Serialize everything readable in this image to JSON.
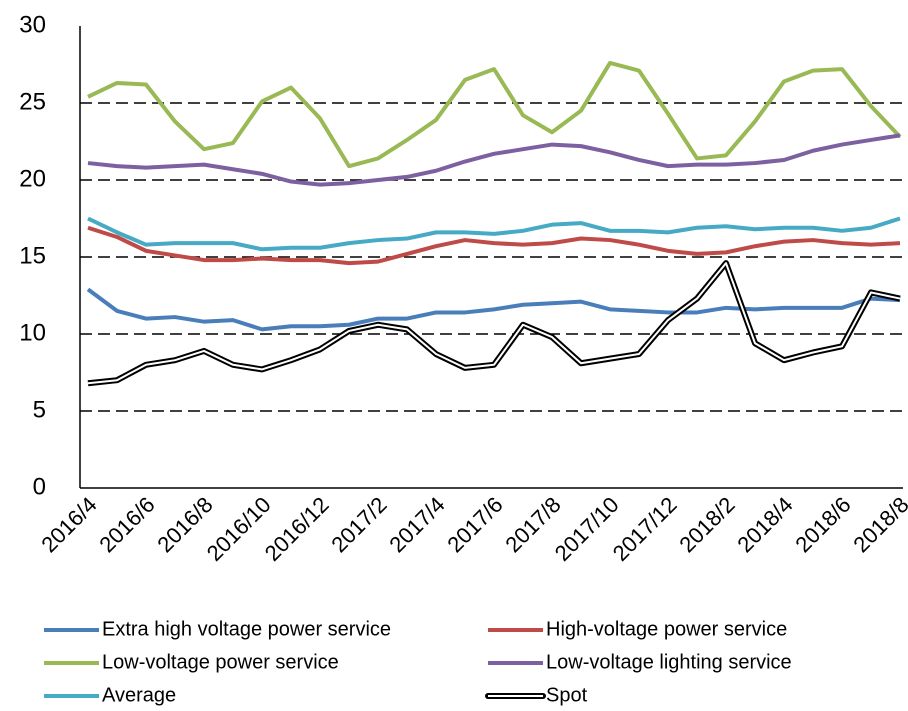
{
  "chart_data": {
    "type": "line",
    "categories": [
      "2016/4",
      null,
      "2016/6",
      null,
      "2016/8",
      null,
      "2016/10",
      null,
      "2016/12",
      null,
      "2017/2",
      null,
      "2017/4",
      null,
      "2017/6",
      null,
      "2017/8",
      null,
      "2017/10",
      null,
      "2017/12",
      null,
      "2018/2",
      null,
      "2018/4",
      null,
      "2018/6",
      null,
      "2018/8"
    ],
    "ylim": [
      0,
      30
    ],
    "yticks": [
      0,
      5,
      10,
      15,
      20,
      25,
      30
    ],
    "grid": true,
    "series": [
      {
        "name": "Extra high voltage power service",
        "color": "#4a7ebb",
        "values": [
          12.9,
          11.5,
          11.0,
          11.1,
          10.8,
          10.9,
          10.3,
          10.5,
          10.5,
          10.6,
          11.0,
          11.0,
          11.4,
          11.4,
          11.6,
          11.9,
          12.0,
          12.1,
          11.6,
          11.5,
          11.4,
          11.4,
          11.7,
          11.6,
          11.7,
          11.7,
          11.7,
          12.3,
          12.2
        ]
      },
      {
        "name": "High-voltage power service",
        "color": "#be4b48",
        "values": [
          16.9,
          16.3,
          15.4,
          15.1,
          14.8,
          14.8,
          14.9,
          14.8,
          14.8,
          14.6,
          14.7,
          15.2,
          15.7,
          16.1,
          15.9,
          15.8,
          15.9,
          16.2,
          16.1,
          15.8,
          15.4,
          15.2,
          15.3,
          15.7,
          16.0,
          16.1,
          15.9,
          15.8,
          15.9
        ]
      },
      {
        "name": "Low-voltage power service",
        "color": "#98b954",
        "values": [
          25.4,
          26.3,
          26.2,
          23.8,
          22.0,
          22.4,
          25.1,
          26.0,
          24.0,
          20.9,
          21.4,
          22.6,
          23.9,
          26.5,
          27.2,
          24.2,
          23.1,
          24.5,
          27.6,
          27.1,
          24.3,
          21.4,
          21.6,
          23.8,
          26.4,
          27.1,
          27.2,
          24.8,
          22.8
        ]
      },
      {
        "name": "Low-voltage lighting service",
        "color": "#7d60a0",
        "values": [
          21.1,
          20.9,
          20.8,
          20.9,
          21.0,
          20.7,
          20.4,
          19.9,
          19.7,
          19.8,
          20.0,
          20.2,
          20.6,
          21.2,
          21.7,
          22.0,
          22.3,
          22.2,
          21.8,
          21.3,
          20.9,
          21.0,
          21.0,
          21.1,
          21.3,
          21.9,
          22.3,
          22.6,
          22.9
        ]
      },
      {
        "name": "Average",
        "color": "#46aac5",
        "values": [
          17.5,
          16.6,
          15.8,
          15.9,
          15.9,
          15.9,
          15.5,
          15.6,
          15.6,
          15.9,
          16.1,
          16.2,
          16.6,
          16.6,
          16.5,
          16.7,
          17.1,
          17.2,
          16.7,
          16.7,
          16.6,
          16.9,
          17.0,
          16.8,
          16.9,
          16.9,
          16.7,
          16.9,
          17.5
        ]
      },
      {
        "name": "Spot",
        "color": "#000000",
        "line_style": "double",
        "values": [
          6.8,
          7.0,
          8.0,
          8.3,
          8.9,
          8.0,
          7.7,
          8.3,
          9.0,
          10.2,
          10.6,
          10.3,
          8.7,
          7.8,
          8.0,
          10.6,
          9.8,
          8.1,
          8.4,
          8.7,
          10.9,
          12.3,
          14.6,
          9.4,
          8.3,
          8.8,
          9.2,
          12.7,
          12.3
        ]
      }
    ]
  }
}
